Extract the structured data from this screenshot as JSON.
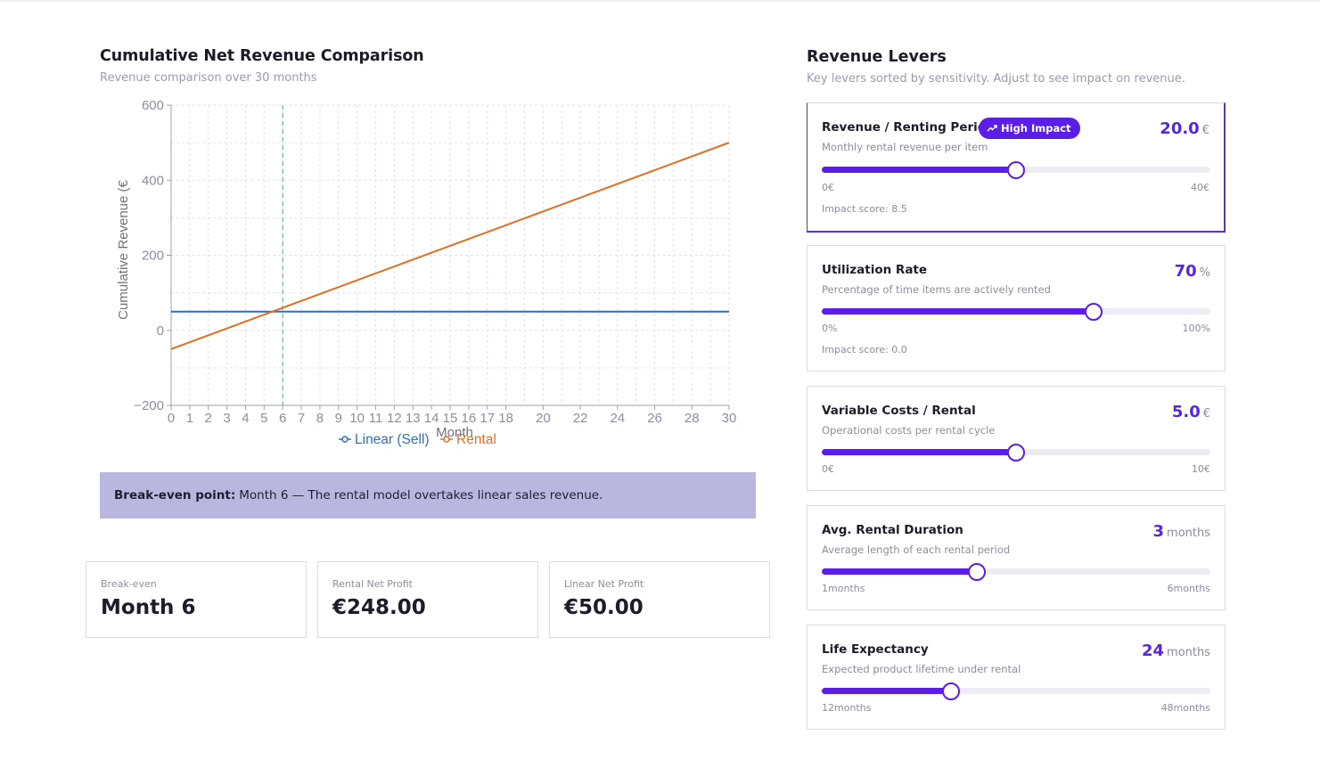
{
  "chart_section": {
    "title": "Cumulative Net Revenue Comparison",
    "subtitle": "Revenue comparison over 30 months"
  },
  "chart_data": {
    "type": "line",
    "x": [
      0,
      1,
      2,
      3,
      4,
      5,
      6,
      7,
      8,
      9,
      10,
      11,
      12,
      13,
      14,
      15,
      16,
      17,
      18,
      20,
      22,
      24,
      26,
      28,
      30
    ],
    "x_tick_labels": [
      "0",
      "1",
      "2",
      "3",
      "4",
      "5",
      "6",
      "7",
      "8",
      "9",
      "10",
      "11",
      "12",
      "13",
      "14",
      "15",
      "16",
      "17",
      "18",
      "20",
      "22",
      "24",
      "26",
      "28",
      "30"
    ],
    "y_ticks": [
      -200,
      0,
      200,
      400,
      600
    ],
    "ylim": [
      -200,
      600
    ],
    "xlabel": "Month",
    "ylabel": "Cumulative Revenue (€",
    "grid": true,
    "legend_position": "bottom-center",
    "series": [
      {
        "name": "Linear (Sell)",
        "color": "#2b6fc7",
        "x": [
          0,
          30
        ],
        "y": [
          50,
          50
        ]
      },
      {
        "name": "Rental",
        "color": "#e06f22",
        "x": [
          0,
          30
        ],
        "y": [
          -50,
          500
        ]
      }
    ],
    "reference_line": {
      "x": 6,
      "color": "#45c4a8"
    }
  },
  "banner": {
    "label": "Break-even point:",
    "text": "Month 6 — The rental model overtakes linear sales revenue."
  },
  "stats": [
    {
      "label": "Break-even",
      "value": "Month 6"
    },
    {
      "label": "Rental Net Profit",
      "value": "€248.00"
    },
    {
      "label": "Linear Net Profit",
      "value": "€50.00"
    }
  ],
  "levers_section": {
    "title": "Revenue Levers",
    "subtitle": "Key levers sorted by sensitivity. Adjust to see impact on revenue."
  },
  "levers": [
    {
      "name": "Revenue / Renting Period",
      "badge": "High Impact",
      "badge_icon": "trending-up-icon",
      "description": "Monthly rental revenue per item",
      "value": "20.0",
      "unit": "€",
      "min_label": "0€",
      "max_label": "40€",
      "fraction": 0.5,
      "impact": "Impact score: 8.5"
    },
    {
      "name": "Utilization Rate",
      "description": "Percentage of time items are actively rented",
      "value": "70",
      "unit": "%",
      "min_label": "0%",
      "max_label": "100%",
      "fraction": 0.7,
      "impact": "Impact score: 0.0"
    },
    {
      "name": "Variable Costs / Rental",
      "description": "Operational costs per rental cycle",
      "value": "5.0",
      "unit": "€",
      "min_label": "0€",
      "max_label": "10€",
      "fraction": 0.5
    },
    {
      "name": "Avg. Rental Duration",
      "description": "Average length of each rental period",
      "value": "3",
      "unit": "months",
      "min_label": "1months",
      "max_label": "6months",
      "fraction": 0.4
    },
    {
      "name": "Life Expectancy",
      "description": "Expected product lifetime under rental",
      "value": "24",
      "unit": "months",
      "min_label": "12months",
      "max_label": "48months",
      "fraction": 0.333
    }
  ],
  "colors": {
    "accent": "#5a1ee8",
    "banner_bg": "#b9b7e0"
  }
}
